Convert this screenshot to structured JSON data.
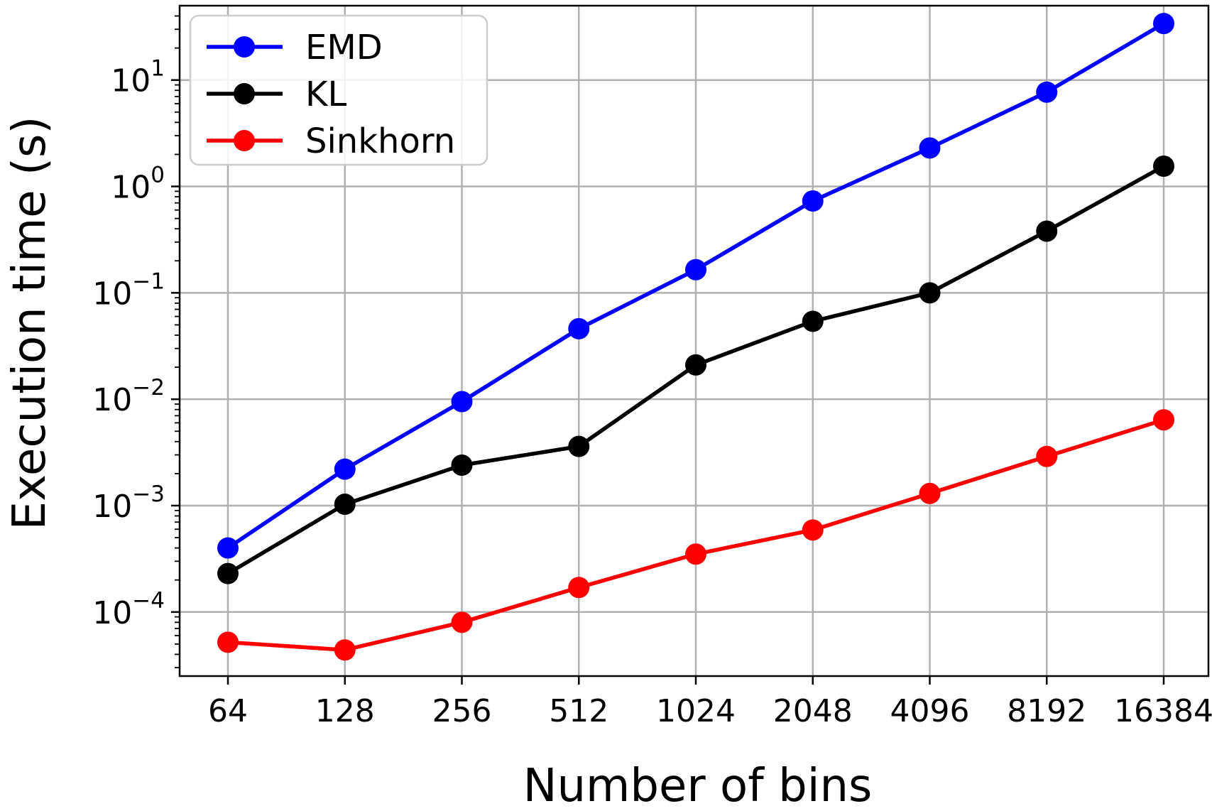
{
  "chart_data": {
    "type": "line",
    "title": "",
    "xlabel": "Number of bins",
    "ylabel": "Execution time (s)",
    "yscale": "log",
    "ylim": [
      2.5e-05,
      50
    ],
    "grid": true,
    "legend_position": "top-left",
    "categories": [
      "64",
      "128",
      "256",
      "512",
      "1024",
      "2048",
      "4096",
      "8192",
      "16384"
    ],
    "y_ticks": [
      {
        "value": 0.0001,
        "base": "10",
        "exp": "−4"
      },
      {
        "value": 0.001,
        "base": "10",
        "exp": "−3"
      },
      {
        "value": 0.01,
        "base": "10",
        "exp": "−2"
      },
      {
        "value": 0.1,
        "base": "10",
        "exp": "−1"
      },
      {
        "value": 1,
        "base": "10",
        "exp": "0"
      },
      {
        "value": 10,
        "base": "10",
        "exp": "1"
      }
    ],
    "series": [
      {
        "name": "EMD",
        "color": "#0000ff",
        "values": [
          0.0004,
          0.0022,
          0.0095,
          0.046,
          0.165,
          0.73,
          2.3,
          7.7,
          34
        ]
      },
      {
        "name": "KL",
        "color": "#000000",
        "values": [
          0.00023,
          0.00103,
          0.0024,
          0.0036,
          0.021,
          0.054,
          0.1,
          0.38,
          1.55
        ]
      },
      {
        "name": "Sinkhorn",
        "color": "#ff0000",
        "values": [
          5.2e-05,
          4.4e-05,
          8e-05,
          0.00017,
          0.00035,
          0.00059,
          0.0013,
          0.0029,
          0.0064
        ]
      }
    ]
  }
}
